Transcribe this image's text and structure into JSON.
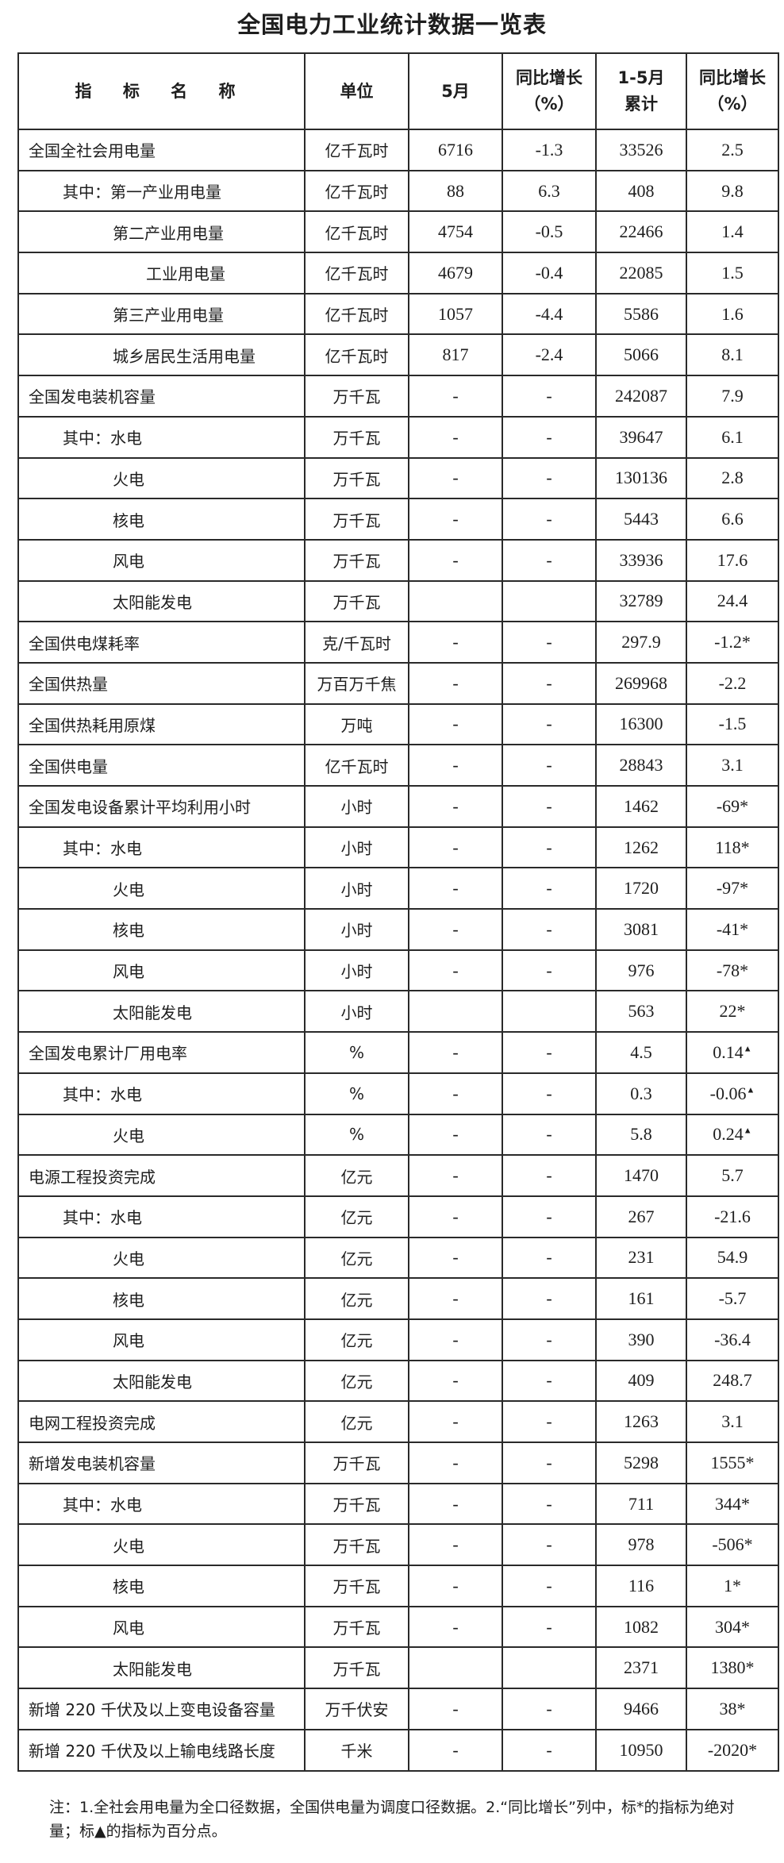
{
  "title": "全国电力工业统计数据一览表",
  "header": {
    "name": "指 标 名 称",
    "unit": "单位",
    "may": "5月",
    "may_yoy_1": "同比增长",
    "may_yoy_2": "（%）",
    "cum_1": "1-5月",
    "cum_2": "累计",
    "cum_yoy_1": "同比增长",
    "cum_yoy_2": "（%）"
  },
  "rows": [
    {
      "name": "全国全社会用电量",
      "level": 0,
      "unit": "亿千瓦时",
      "may": "6716",
      "may_yoy": "-1.3",
      "cum": "33526",
      "cum_yoy": "2.5"
    },
    {
      "name": "其中：第一产业用电量",
      "level": 1,
      "unit": "亿千瓦时",
      "may": "88",
      "may_yoy": "6.3",
      "cum": "408",
      "cum_yoy": "9.8"
    },
    {
      "name": "第二产业用电量",
      "level": 2,
      "unit": "亿千瓦时",
      "may": "4754",
      "may_yoy": "-0.5",
      "cum": "22466",
      "cum_yoy": "1.4"
    },
    {
      "name": "工业用电量",
      "level": 3,
      "unit": "亿千瓦时",
      "may": "4679",
      "may_yoy": "-0.4",
      "cum": "22085",
      "cum_yoy": "1.5"
    },
    {
      "name": "第三产业用电量",
      "level": 2,
      "unit": "亿千瓦时",
      "may": "1057",
      "may_yoy": "-4.4",
      "cum": "5586",
      "cum_yoy": "1.6"
    },
    {
      "name": "城乡居民生活用电量",
      "level": 2,
      "unit": "亿千瓦时",
      "may": "817",
      "may_yoy": "-2.4",
      "cum": "5066",
      "cum_yoy": "8.1"
    },
    {
      "name": "全国发电装机容量",
      "level": 0,
      "unit": "万千瓦",
      "may": "-",
      "may_yoy": "-",
      "cum": "242087",
      "cum_yoy": "7.9"
    },
    {
      "name": "其中：水电",
      "level": 1,
      "unit": "万千瓦",
      "may": "-",
      "may_yoy": "-",
      "cum": "39647",
      "cum_yoy": "6.1"
    },
    {
      "name": "火电",
      "level": 2,
      "unit": "万千瓦",
      "may": "-",
      "may_yoy": "-",
      "cum": "130136",
      "cum_yoy": "2.8"
    },
    {
      "name": "核电",
      "level": 2,
      "unit": "万千瓦",
      "may": "-",
      "may_yoy": "-",
      "cum": "5443",
      "cum_yoy": "6.6"
    },
    {
      "name": "风电",
      "level": 2,
      "unit": "万千瓦",
      "may": "-",
      "may_yoy": "-",
      "cum": "33936",
      "cum_yoy": "17.6"
    },
    {
      "name": "太阳能发电",
      "level": 2,
      "unit": "万千瓦",
      "may": "",
      "may_yoy": "",
      "cum": "32789",
      "cum_yoy": "24.4"
    },
    {
      "name": "全国供电煤耗率",
      "level": 0,
      "unit": "克/千瓦时",
      "may": "-",
      "may_yoy": "-",
      "cum": "297.9",
      "cum_yoy": "-1.2*"
    },
    {
      "name": "全国供热量",
      "level": 0,
      "unit": "万百万千焦",
      "may": "-",
      "may_yoy": "-",
      "cum": "269968",
      "cum_yoy": "-2.2"
    },
    {
      "name": "全国供热耗用原煤",
      "level": 0,
      "unit": "万吨",
      "may": "-",
      "may_yoy": "-",
      "cum": "16300",
      "cum_yoy": "-1.5"
    },
    {
      "name": "全国供电量",
      "level": 0,
      "unit": "亿千瓦时",
      "may": "-",
      "may_yoy": "-",
      "cum": "28843",
      "cum_yoy": "3.1"
    },
    {
      "name": "全国发电设备累计平均利用小时",
      "level": 0,
      "unit": "小时",
      "may": "-",
      "may_yoy": "-",
      "cum": "1462",
      "cum_yoy": "-69*"
    },
    {
      "name": "其中：水电",
      "level": 1,
      "unit": "小时",
      "may": "-",
      "may_yoy": "-",
      "cum": "1262",
      "cum_yoy": "118*"
    },
    {
      "name": "火电",
      "level": 2,
      "unit": "小时",
      "may": "-",
      "may_yoy": "-",
      "cum": "1720",
      "cum_yoy": "-97*"
    },
    {
      "name": "核电",
      "level": 2,
      "unit": "小时",
      "may": "-",
      "may_yoy": "-",
      "cum": "3081",
      "cum_yoy": "-41*"
    },
    {
      "name": "风电",
      "level": 2,
      "unit": "小时",
      "may": "-",
      "may_yoy": "-",
      "cum": "976",
      "cum_yoy": "-78*"
    },
    {
      "name": "太阳能发电",
      "level": 2,
      "unit": "小时",
      "may": "",
      "may_yoy": "",
      "cum": "563",
      "cum_yoy": "22*"
    },
    {
      "name": "全国发电累计厂用电率",
      "level": 0,
      "unit": "%",
      "may": "-",
      "may_yoy": "-",
      "cum": "4.5",
      "cum_yoy": "0.14",
      "mark": "▲"
    },
    {
      "name": "其中：水电",
      "level": 1,
      "unit": "%",
      "may": "-",
      "may_yoy": "-",
      "cum": "0.3",
      "cum_yoy": "-0.06",
      "mark": "▲"
    },
    {
      "name": "火电",
      "level": 2,
      "unit": "%",
      "may": "-",
      "may_yoy": "-",
      "cum": "5.8",
      "cum_yoy": "0.24",
      "mark": "▲"
    },
    {
      "name": "电源工程投资完成",
      "level": 0,
      "unit": "亿元",
      "may": "-",
      "may_yoy": "-",
      "cum": "1470",
      "cum_yoy": "5.7"
    },
    {
      "name": "其中：水电",
      "level": 1,
      "unit": "亿元",
      "may": "-",
      "may_yoy": "-",
      "cum": "267",
      "cum_yoy": "-21.6"
    },
    {
      "name": "火电",
      "level": 2,
      "unit": "亿元",
      "may": "-",
      "may_yoy": "-",
      "cum": "231",
      "cum_yoy": "54.9"
    },
    {
      "name": "核电",
      "level": 2,
      "unit": "亿元",
      "may": "-",
      "may_yoy": "-",
      "cum": "161",
      "cum_yoy": "-5.7"
    },
    {
      "name": "风电",
      "level": 2,
      "unit": "亿元",
      "may": "-",
      "may_yoy": "-",
      "cum": "390",
      "cum_yoy": "-36.4"
    },
    {
      "name": "太阳能发电",
      "level": 2,
      "unit": "亿元",
      "may": "-",
      "may_yoy": "-",
      "cum": "409",
      "cum_yoy": "248.7"
    },
    {
      "name": "电网工程投资完成",
      "level": 0,
      "unit": "亿元",
      "may": "-",
      "may_yoy": "-",
      "cum": "1263",
      "cum_yoy": "3.1"
    },
    {
      "name": "新增发电装机容量",
      "level": 0,
      "unit": "万千瓦",
      "may": "-",
      "may_yoy": "-",
      "cum": "5298",
      "cum_yoy": "1555*"
    },
    {
      "name": "其中：水电",
      "level": 1,
      "unit": "万千瓦",
      "may": "-",
      "may_yoy": "-",
      "cum": "711",
      "cum_yoy": "344*"
    },
    {
      "name": "火电",
      "level": 2,
      "unit": "万千瓦",
      "may": "-",
      "may_yoy": "-",
      "cum": "978",
      "cum_yoy": "-506*"
    },
    {
      "name": "核电",
      "level": 2,
      "unit": "万千瓦",
      "may": "-",
      "may_yoy": "-",
      "cum": "116",
      "cum_yoy": "1*"
    },
    {
      "name": "风电",
      "level": 2,
      "unit": "万千瓦",
      "may": "-",
      "may_yoy": "-",
      "cum": "1082",
      "cum_yoy": "304*"
    },
    {
      "name": "太阳能发电",
      "level": 2,
      "unit": "万千瓦",
      "may": "",
      "may_yoy": "",
      "cum": "2371",
      "cum_yoy": "1380*"
    },
    {
      "name": "新增 220 千伏及以上变电设备容量",
      "level": 0,
      "unit": "万千伏安",
      "may": "-",
      "may_yoy": "-",
      "cum": "9466",
      "cum_yoy": "38*"
    },
    {
      "name": "新增 220 千伏及以上输电线路长度",
      "level": 0,
      "unit": "千米",
      "may": "-",
      "may_yoy": "-",
      "cum": "10950",
      "cum_yoy": "-2020*"
    }
  ],
  "note": "注：1.全社会用电量为全口径数据，全国供电量为调度口径数据。2.“同比增长”列中，标*的指标为绝对量；标▲的指标为百分点。"
}
